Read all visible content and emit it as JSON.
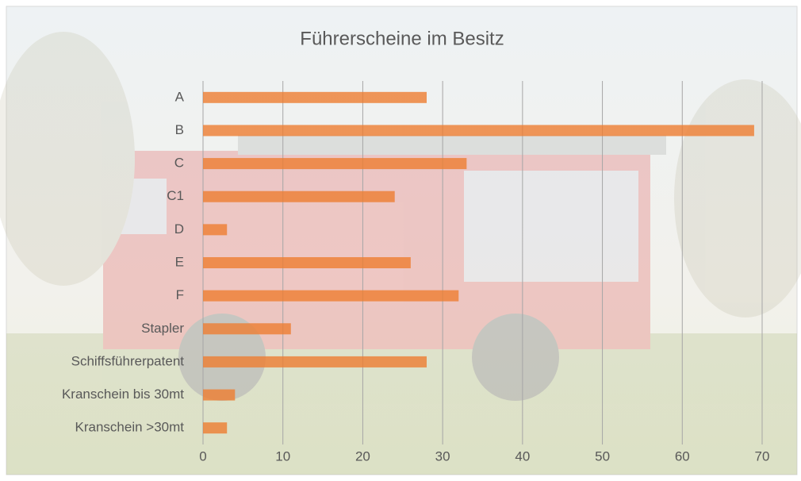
{
  "chart_data": {
    "type": "bar",
    "orientation": "horizontal",
    "title": "Führerscheine im Besitz",
    "categories": [
      "A",
      "B",
      "C",
      "C1",
      "D",
      "E",
      "F",
      "Stapler",
      "Schiffsführerpatent",
      "Kranschein bis 30mt",
      "Kranschein >30mt"
    ],
    "values": [
      28,
      69,
      33,
      24,
      3,
      26,
      32,
      11,
      28,
      4,
      3
    ],
    "color": "#ed7d31",
    "xlim": [
      0,
      70
    ],
    "xticks": [
      0,
      10,
      20,
      30,
      40,
      50,
      60,
      70
    ],
    "grid": true
  }
}
